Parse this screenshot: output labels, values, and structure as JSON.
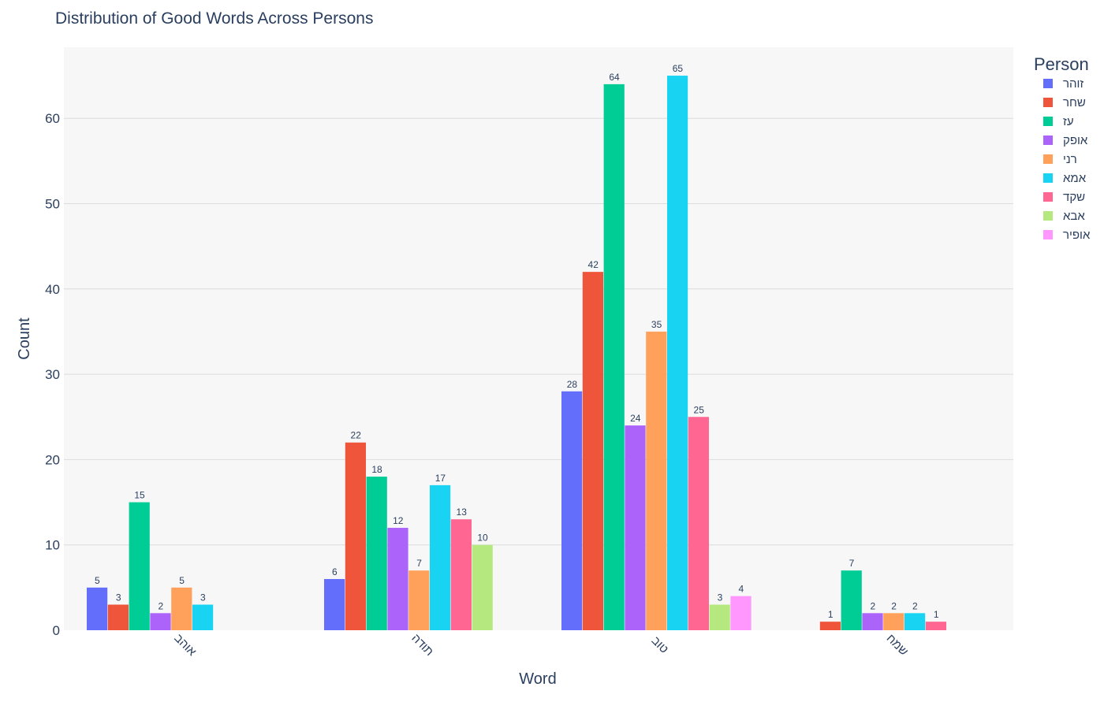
{
  "chart_data": {
    "type": "bar",
    "title": "Distribution of Good Words Across Persons",
    "xlabel": "Word",
    "ylabel": "Count",
    "ylim": [
      0,
      68
    ],
    "yticks": [
      0,
      10,
      20,
      30,
      40,
      50,
      60
    ],
    "grid": true,
    "legend_title": "Person",
    "legend_position": "top-right",
    "categories": [
      "אוהב",
      "תודה",
      "טוב",
      "שמח"
    ],
    "series": [
      {
        "name": "זוהר",
        "color": "#636efa",
        "values": [
          5,
          6,
          28,
          null
        ]
      },
      {
        "name": "שחר",
        "color": "#ef553b",
        "values": [
          3,
          22,
          42,
          1
        ]
      },
      {
        "name": "עז",
        "color": "#00cc96",
        "values": [
          15,
          18,
          64,
          7
        ]
      },
      {
        "name": "אופק",
        "color": "#ab63fa",
        "values": [
          2,
          12,
          24,
          2
        ]
      },
      {
        "name": "רני",
        "color": "#ffa15a",
        "values": [
          5,
          7,
          35,
          2
        ]
      },
      {
        "name": "אמא",
        "color": "#19d3f3",
        "values": [
          3,
          17,
          65,
          2
        ]
      },
      {
        "name": "שקד",
        "color": "#ff6692",
        "values": [
          null,
          13,
          25,
          1
        ]
      },
      {
        "name": "אבא",
        "color": "#b6e880",
        "values": [
          null,
          10,
          3,
          null
        ]
      },
      {
        "name": "אופיר",
        "color": "#ff97ff",
        "values": [
          null,
          null,
          4,
          null
        ]
      }
    ]
  }
}
